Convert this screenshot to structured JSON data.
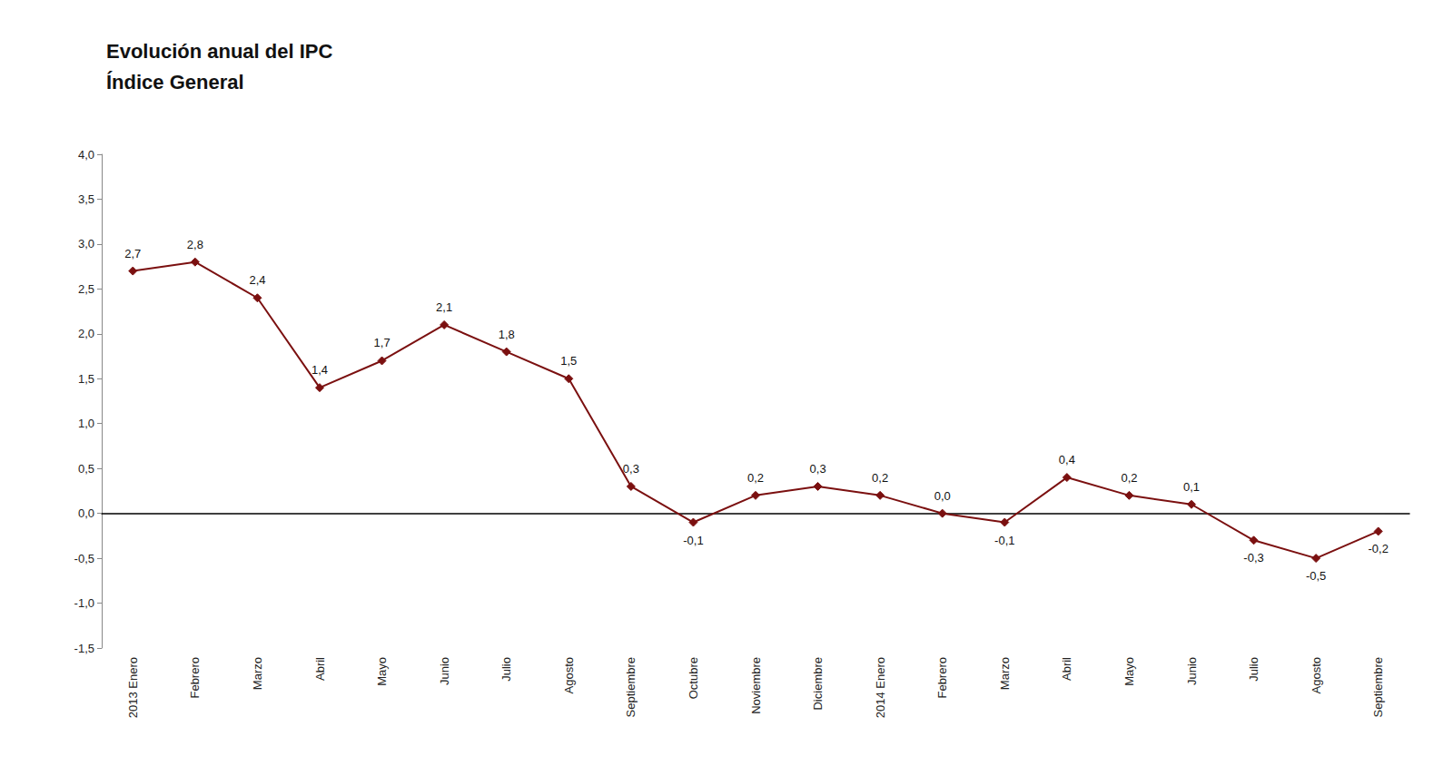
{
  "chart_data": {
    "type": "line",
    "title": "Evolución anual del IPC",
    "subtitle": "Índice General",
    "categories": [
      "2013 Enero",
      "Febrero",
      "Marzo",
      "Abril",
      "Mayo",
      "Junio",
      "Julio",
      "Agosto",
      "Septiembre",
      "Octubre",
      "Noviembre",
      "Diciembre",
      "2014 Enero",
      "Febrero",
      "Marzo",
      "Abril",
      "Mayo",
      "Junio",
      "Julio",
      "Agosto",
      "Septiembre"
    ],
    "values": [
      2.7,
      2.8,
      2.4,
      1.4,
      1.7,
      2.1,
      1.8,
      1.5,
      0.3,
      -0.1,
      0.2,
      0.3,
      0.2,
      0.0,
      -0.1,
      0.4,
      0.2,
      0.1,
      -0.3,
      -0.5,
      -0.2
    ],
    "value_labels": [
      "2,7",
      "2,8",
      "2,4",
      "1,4",
      "1,7",
      "2,1",
      "1,8",
      "1,5",
      "0,3",
      "-0,1",
      "0,2",
      "0,3",
      "0,2",
      "0,0",
      "-0,1",
      "0,4",
      "0,2",
      "0,1",
      "-0,3",
      "-0,5",
      "-0,2"
    ],
    "data_labels": true,
    "color": "#7B1010",
    "marker": "diamond",
    "ylim": [
      -1.5,
      4.0
    ],
    "yticks": [
      {
        "value": -1.5,
        "label": "-1,5"
      },
      {
        "value": -1.0,
        "label": "-1,0"
      },
      {
        "value": -0.5,
        "label": "-0,5"
      },
      {
        "value": 0.0,
        "label": "0,0"
      },
      {
        "value": 0.5,
        "label": "0,5"
      },
      {
        "value": 1.0,
        "label": "1,0"
      },
      {
        "value": 1.5,
        "label": "1,5"
      },
      {
        "value": 2.0,
        "label": "2,0"
      },
      {
        "value": 2.5,
        "label": "2,5"
      },
      {
        "value": 3.0,
        "label": "3,0"
      },
      {
        "value": 3.5,
        "label": "3,5"
      },
      {
        "value": 4.0,
        "label": "4,0"
      }
    ],
    "grid": false
  }
}
